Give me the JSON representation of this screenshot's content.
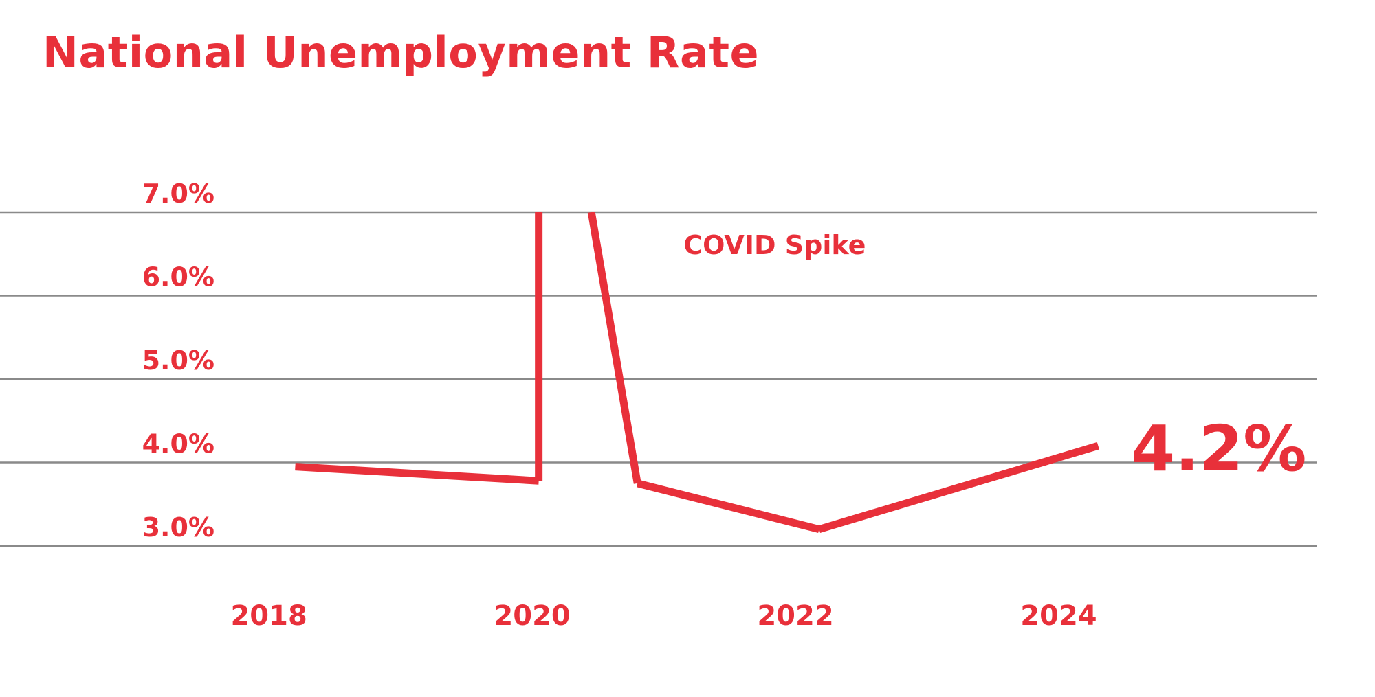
{
  "colors": {
    "accent": "#E8303A",
    "grid": "#8a8a8a",
    "background": "#ffffff"
  },
  "chart_data": {
    "type": "line",
    "title": "National Unemployment Rate",
    "xlabel": "",
    "ylabel": "",
    "x_ticks": [
      "2018",
      "2020",
      "2022",
      "2024"
    ],
    "y_ticks": [
      "3.0%",
      "4.0%",
      "5.0%",
      "6.0%",
      "7.0%"
    ],
    "xlim": [
      2017.9,
      2025.4
    ],
    "ylim": [
      3.0,
      7.0
    ],
    "grid": true,
    "series": [
      {
        "x": [
          2018.2,
          2020.05,
          2020.05,
          2020.45,
          2020.8,
          2022.18,
          2024.3
        ],
        "y": [
          3.95,
          3.78,
          7.0,
          7.0,
          3.75,
          3.2,
          4.2
        ],
        "clipped_above": true
      }
    ],
    "annotations": [
      {
        "text": "COVID Spike",
        "x": 2021.15,
        "y": 6.5
      },
      {
        "text": "4.2%",
        "x": 2024.55,
        "y": 4.2,
        "emphasis": "large"
      }
    ]
  }
}
